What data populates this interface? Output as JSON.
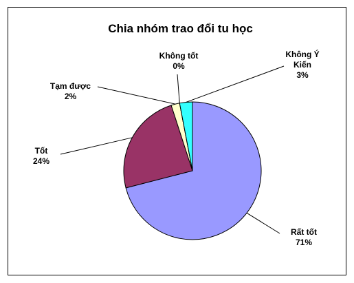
{
  "chart_data": {
    "type": "pie",
    "title": "Chia nhóm trao đổi tu học",
    "categories": [
      "Rất tốt",
      "Tốt",
      "Tạm được",
      "Không tốt",
      "Không Ý Kiến"
    ],
    "values": [
      71,
      24,
      2,
      0,
      3
    ],
    "value_labels": [
      "71%",
      "24%",
      "2%",
      "0%",
      "3%"
    ],
    "colors": [
      "#9999ff",
      "#993366",
      "#ffffcc",
      "#ccffff",
      "#33ffff"
    ]
  }
}
